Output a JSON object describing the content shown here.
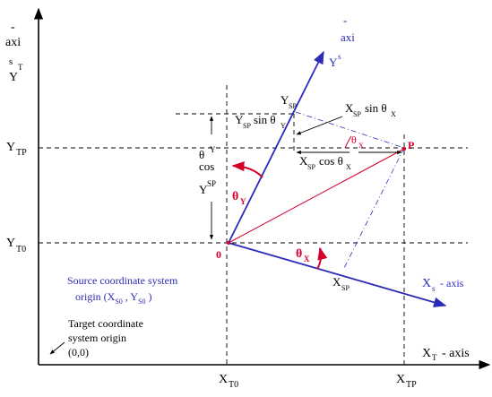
{
  "colors": {
    "axis": "#000000",
    "source_axes": "#2b2bb8",
    "angle": "#d4002a",
    "text": "#000000"
  },
  "target_axes": {
    "y_label_lines": [
      "-",
      "axi",
      "s",
      "Y"
    ],
    "y_label_subscript": "T",
    "x_label_main": "X",
    "x_label_subscript": "T",
    "x_label_suffix": "- axis"
  },
  "tick_labels": {
    "y_tp": {
      "main": "Y",
      "sub": "TP"
    },
    "y_t0": {
      "main": "Y",
      "sub": "T0"
    },
    "x_t0": {
      "main": "X",
      "sub": "T0"
    },
    "x_tp": {
      "main": "X",
      "sub": "TP"
    }
  },
  "source_axes": {
    "ys_label_dash": "-",
    "ys_label_axi": "axi",
    "ys_label_ys": "Y",
    "ys_label_ys_sub": "s",
    "xs_label_main": "X",
    "xs_label_sub": "s",
    "xs_label_suffix": "- axis"
  },
  "points": {
    "origin": "0",
    "p": "P"
  },
  "components": {
    "ysp_label": {
      "main": "Y",
      "sub": "SP"
    },
    "xsp_label": {
      "main": "X",
      "sub": "SP"
    },
    "ysp_sin": {
      "main": "Y",
      "sub": "SP",
      "trail": "sin θ",
      "angle_sub": "Y"
    },
    "xsp_sin": {
      "main": "X",
      "sub": "SP",
      "trail": "sin θ",
      "angle_sub": "X"
    },
    "xsp_cos": {
      "main": "X",
      "sub": "SP",
      "trail": "cos θ",
      "angle_sub": "X"
    },
    "ysp_cos_vertical": {
      "theta": "θ",
      "theta_sub": "Y",
      "cos": "cos",
      "y": "Y",
      "y_sup": "SP"
    }
  },
  "angles": {
    "theta_y": {
      "main": "θ",
      "sub": "Y"
    },
    "theta_x": {
      "main": "θ",
      "sub": "X"
    },
    "theta_x_small": {
      "main": "θ",
      "sub": "X"
    }
  },
  "annotations": {
    "source_origin_line1": "Source coordinate system",
    "source_origin_line2_pre": "origin (X",
    "source_origin_sub1": "S0",
    "source_origin_mid": " , Y",
    "source_origin_sub2": "S0",
    "source_origin_end": "  )",
    "target_origin_line1": "Target coordinate",
    "target_origin_line2": "system origin",
    "target_origin_line3": "(0,0)"
  }
}
